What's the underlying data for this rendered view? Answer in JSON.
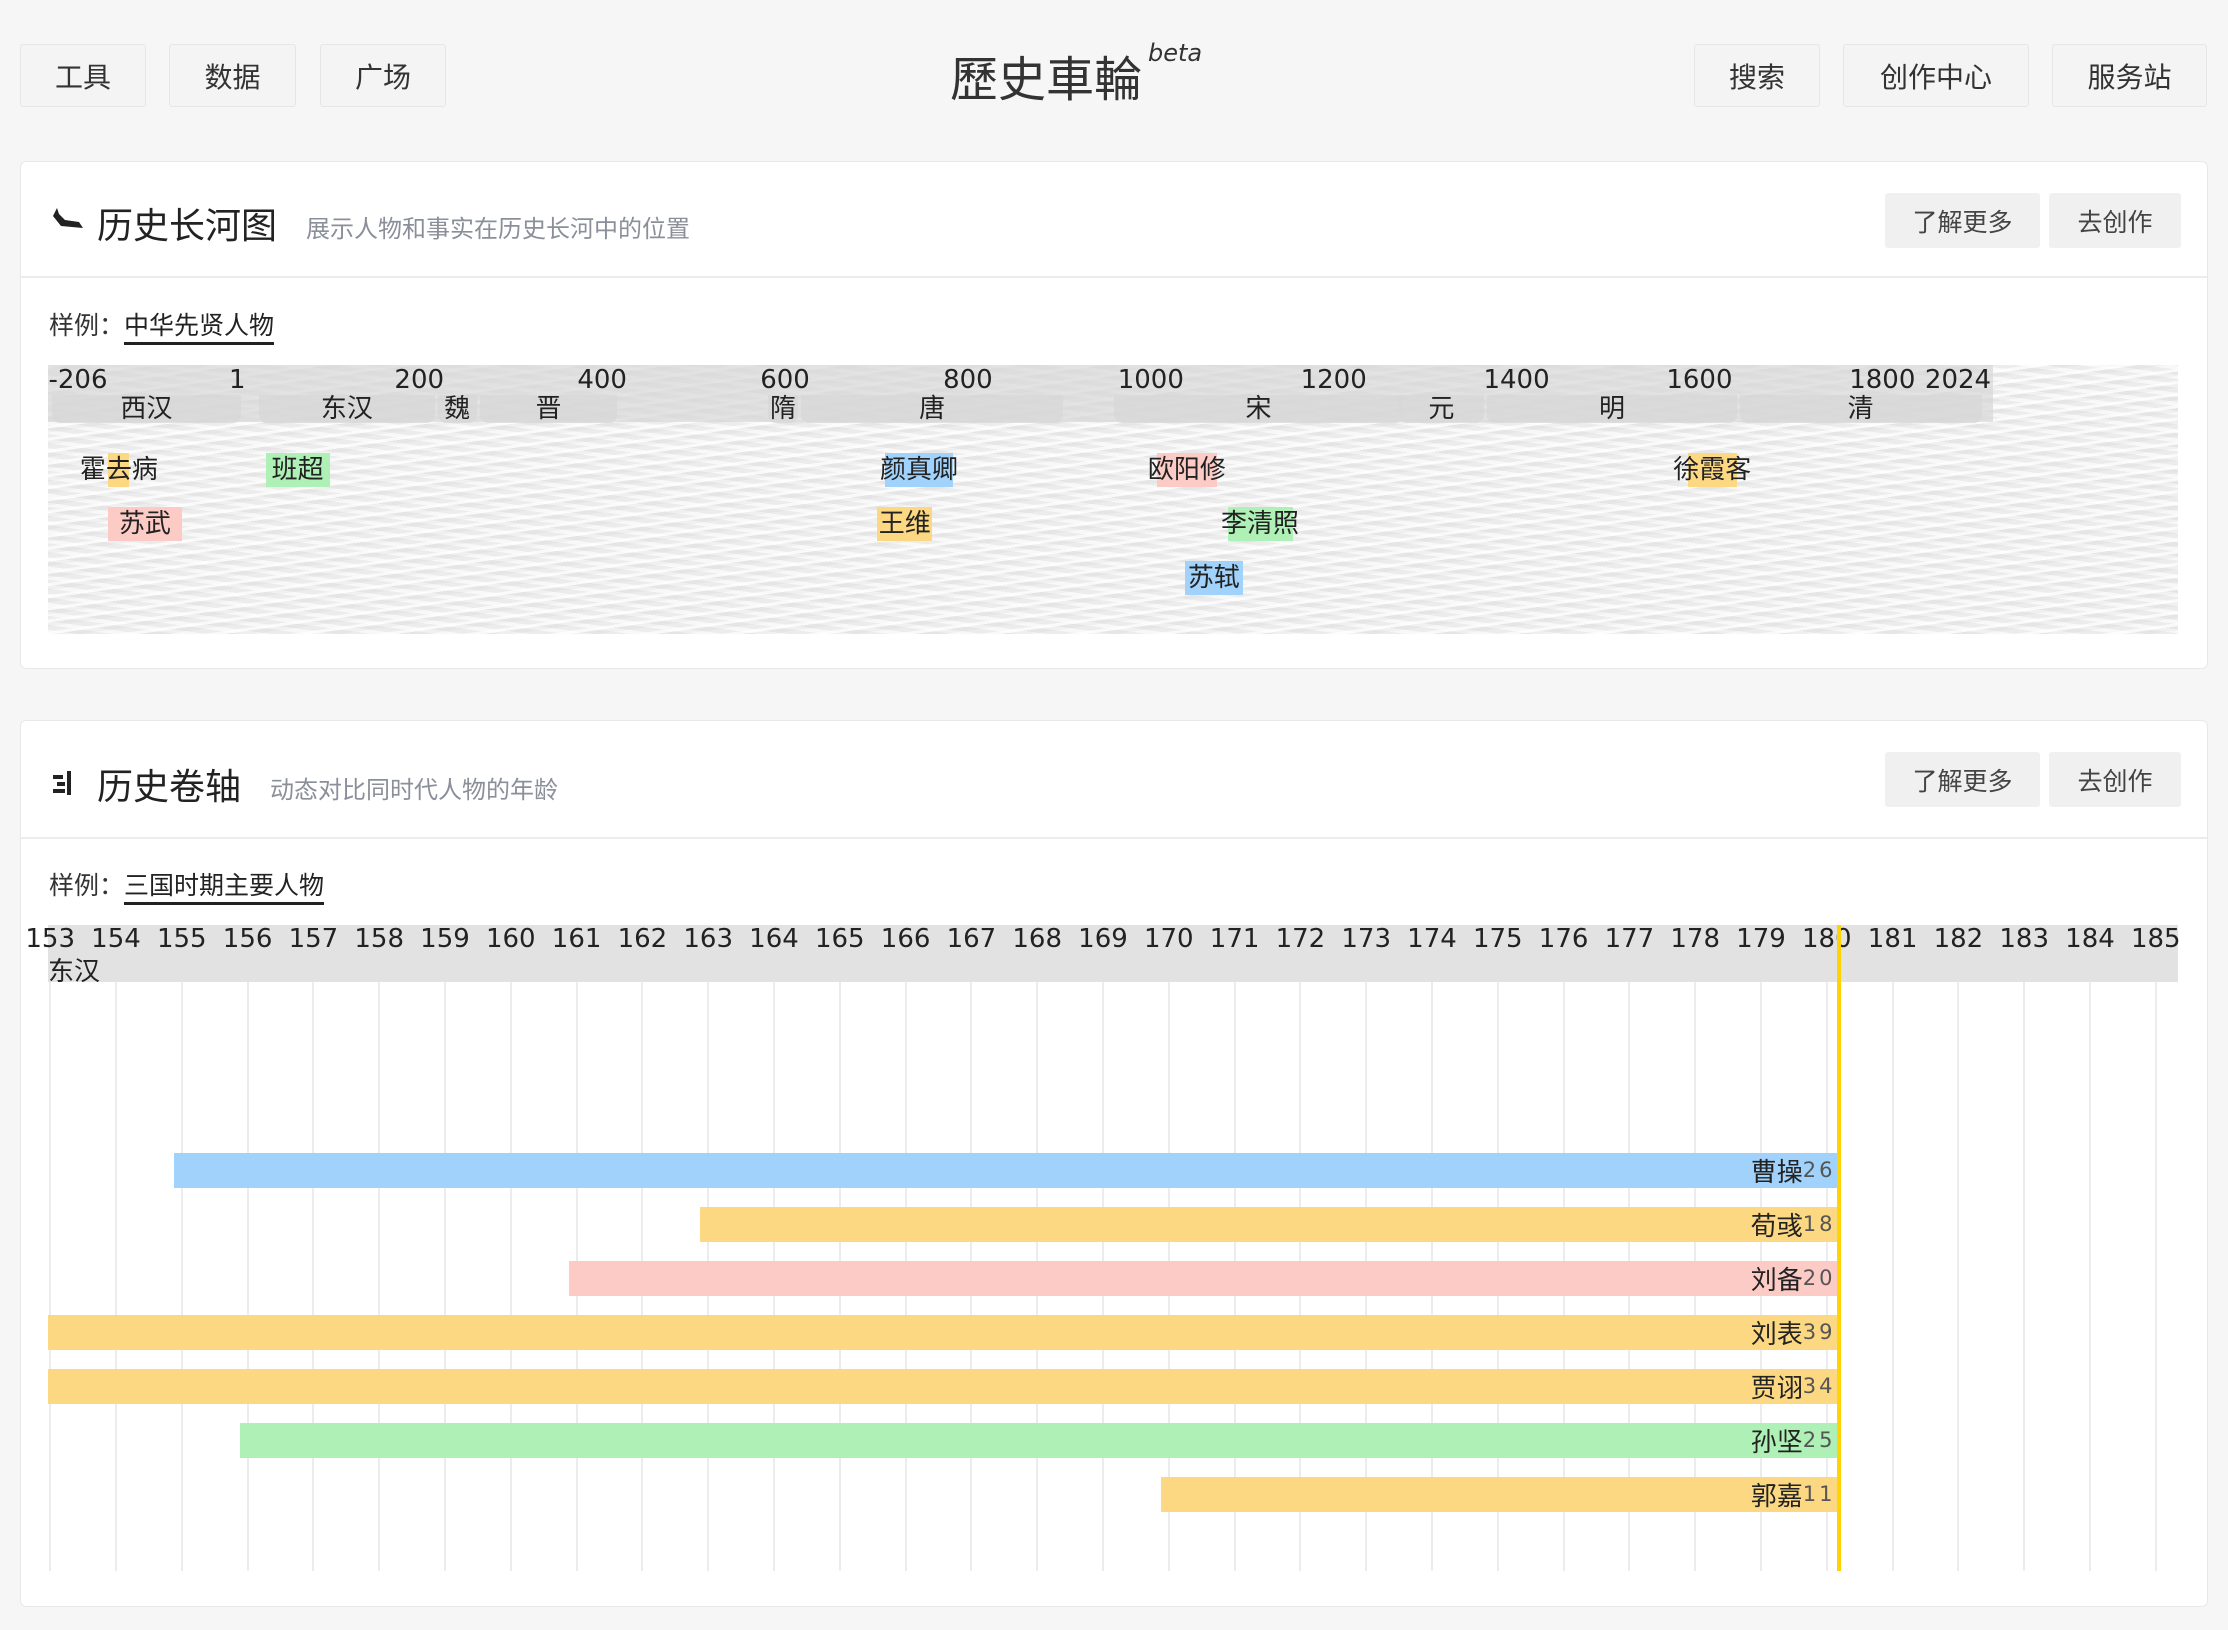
{
  "nav": {
    "left": [
      "工具",
      "数据",
      "广场"
    ],
    "right": [
      "搜索",
      "创作中心",
      "服务站"
    ]
  },
  "logo": {
    "text": "歷史車輪",
    "badge": "beta"
  },
  "river": {
    "title": "历史长河图",
    "subtitle": "展示人物和事实在历史长河中的位置",
    "icon": "river-boat-icon",
    "learn_more": "了解更多",
    "create": "去创作",
    "sample_label": "样例：",
    "sample_link": "中华先贤人物",
    "chart_data": {
      "type": "timeline",
      "ticks": [
        -206,
        1,
        200,
        400,
        600,
        800,
        1000,
        1200,
        1400,
        1600,
        1800,
        2024
      ],
      "dynasties": [
        {
          "name": "西汉",
          "start": -206,
          "end": 8
        },
        {
          "name": "东汉",
          "start": 25,
          "end": 220
        },
        {
          "name": "魏",
          "start": 220,
          "end": 266
        },
        {
          "name": "晋",
          "start": 266,
          "end": 420
        },
        {
          "name": "隋",
          "start": 581,
          "end": 618
        },
        {
          "name": "唐",
          "start": 618,
          "end": 907
        },
        {
          "name": "宋",
          "start": 960,
          "end": 1279
        },
        {
          "name": "元",
          "start": 1271,
          "end": 1368
        },
        {
          "name": "明",
          "start": 1368,
          "end": 1644
        },
        {
          "name": "清",
          "start": 1644,
          "end": 1912
        }
      ],
      "people": [
        {
          "name": "霍去病",
          "start": -140,
          "end": -117,
          "row": 0,
          "color": "#fdd882"
        },
        {
          "name": "苏武",
          "start": -140,
          "end": -60,
          "row": 1,
          "color": "#fccbc5"
        },
        {
          "name": "班超",
          "start": 32,
          "end": 102,
          "row": 0,
          "color": "#aef0b5"
        },
        {
          "name": "颜真卿",
          "start": 709,
          "end": 784,
          "row": 0,
          "color": "#a0d2fb"
        },
        {
          "name": "王维",
          "start": 701,
          "end": 761,
          "row": 1,
          "color": "#fdd882"
        },
        {
          "name": "欧阳修",
          "start": 1007,
          "end": 1072,
          "row": 0,
          "color": "#fccbc5"
        },
        {
          "name": "李清照",
          "start": 1084,
          "end": 1155,
          "row": 1,
          "color": "#aef0b5"
        },
        {
          "name": "苏轼",
          "start": 1037,
          "end": 1101,
          "row": 2,
          "color": "#a0d2fb"
        },
        {
          "name": "徐霞客",
          "start": 1587,
          "end": 1641,
          "row": 0,
          "color": "#fdd882"
        }
      ]
    }
  },
  "scroll": {
    "title": "历史卷轴",
    "subtitle": "动态对比同时代人物的年龄",
    "icon": "scroll-bars-icon",
    "learn_more": "了解更多",
    "create": "去创作",
    "sample_label": "样例：",
    "sample_link": "三国时期主要人物",
    "chart_data": {
      "type": "bar",
      "ticks": [
        153,
        154,
        155,
        156,
        157,
        158,
        159,
        160,
        161,
        162,
        163,
        164,
        165,
        166,
        167,
        168,
        169,
        170,
        171,
        172,
        173,
        174,
        175,
        176,
        177,
        178,
        179,
        180,
        181,
        182,
        183,
        184,
        185
      ],
      "era": "东汉",
      "current_year": 180,
      "current_line_color": "#ffd400",
      "people": [
        {
          "name": "曹操",
          "birth": 155,
          "age": "26",
          "color": "#a0d2fb"
        },
        {
          "name": "荀彧",
          "birth": 163,
          "age": "18",
          "color": "#fdd882"
        },
        {
          "name": "刘备",
          "birth": 161,
          "age": "20",
          "color": "#fccbc5"
        },
        {
          "name": "刘表",
          "birth": 142,
          "age": "39",
          "color": "#fdd882"
        },
        {
          "name": "贾诩",
          "birth": 147,
          "age": "34",
          "color": "#fdd882"
        },
        {
          "name": "孙坚",
          "birth": 156,
          "age": "25",
          "color": "#aef0b5"
        },
        {
          "name": "郭嘉",
          "birth": 170,
          "age": "11",
          "color": "#fdd882"
        }
      ]
    }
  }
}
